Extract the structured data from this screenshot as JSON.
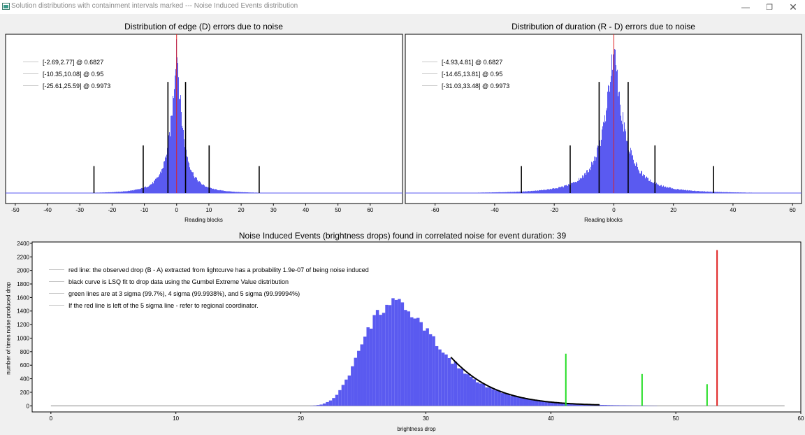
{
  "window": {
    "title": "Solution distributions with containment intervals marked --- Noise Induced Events distribution",
    "icon": "app-window-icon",
    "controls": [
      "minimize-icon",
      "restore-icon",
      "close-icon"
    ]
  },
  "colors": {
    "hist": "#5a5af0",
    "red": "#e02020",
    "green": "#22dd22",
    "black": "#000000",
    "plotbg": "#ffffff",
    "windowbg": "#f0f0f0"
  },
  "chart_data": [
    {
      "id": "edge",
      "type": "bar",
      "title": "Distribution of edge (D) errors due to noise",
      "xlabel": "Reading blocks",
      "ylabel": "",
      "xlim": [
        -53,
        70
      ],
      "xticks": [
        -50,
        -40,
        -30,
        -20,
        -10,
        0,
        10,
        20,
        30,
        40,
        50,
        60
      ],
      "distribution": {
        "center": 0,
        "scale": 2.5,
        "peak": 1
      },
      "intervals": [
        {
          "label": "[-2.69,2.77] @ 0.6827",
          "low": -2.69,
          "high": 2.77,
          "height": 0.7
        },
        {
          "label": "[-10.35,10.08] @ 0.95",
          "low": -10.35,
          "high": 10.08,
          "height": 0.3
        },
        {
          "label": "[-25.61,25.59] @ 0.9973",
          "low": -25.61,
          "high": 25.59,
          "height": 0.17
        }
      ],
      "marker": 0
    },
    {
      "id": "duration",
      "type": "bar",
      "title": "Distribution of duration (R - D) errors due to noise",
      "xlabel": "Reading blocks",
      "ylabel": "",
      "xlim": [
        -70,
        63
      ],
      "xticks": [
        -60,
        -40,
        -20,
        0,
        20,
        40,
        60
      ],
      "distribution": {
        "center": 0,
        "scale": 4.6,
        "peak": 1
      },
      "intervals": [
        {
          "label": "[-4.93,4.81] @ 0.6827",
          "low": -4.93,
          "high": 4.81,
          "height": 0.7
        },
        {
          "label": "[-14.65,13.81] @ 0.95",
          "low": -14.65,
          "high": 13.81,
          "height": 0.3
        },
        {
          "label": "[-31.03,33.48] @ 0.9973",
          "low": -31.03,
          "high": 33.48,
          "height": 0.17
        }
      ],
      "marker": 0
    },
    {
      "id": "noise_events",
      "type": "bar",
      "title": "Noise Induced Events (brightness drops) found in correlated noise for event duration: 39",
      "xlabel": "brightness drop",
      "ylabel": "number of times noise produced drop",
      "xlim": [
        -1.5,
        60
      ],
      "ylim": [
        -90,
        2420
      ],
      "xticks": [
        0,
        10,
        20,
        30,
        40,
        50,
        60
      ],
      "yticks": [
        0,
        200,
        400,
        600,
        800,
        1000,
        1200,
        1400,
        1600,
        1800,
        2000,
        2200,
        2400
      ],
      "baseline": {
        "from": 0,
        "to": 58.7
      },
      "histogram": {
        "mode": 27.4,
        "beta": 2.9,
        "peak": 1510,
        "from": 17,
        "to": 48.5,
        "bin": 0.25
      },
      "fit_curve": {
        "from": 32,
        "to": 44,
        "label": "Gumbel Extreme Value LSQ fit"
      },
      "green_lines": [
        {
          "x": 41.2,
          "height": 770
        },
        {
          "x": 47.3,
          "height": 470
        },
        {
          "x": 52.5,
          "height": 320
        }
      ],
      "red_line": {
        "x": 53.3,
        "height": 2300
      },
      "legend": [
        "red line: the observed drop (B - A) extracted from lightcurve has a probability 1.9e-07 of being noise induced",
        "black curve is LSQ fit to drop data using the Gumbel Extreme Value distribution",
        "green lines are at 3 sigma (99.7%), 4 sigma (99.9938%), and 5 sigma (99.99994%)",
        "If the red line is left of the 5 sigma line - refer to regional coordinator."
      ]
    }
  ]
}
